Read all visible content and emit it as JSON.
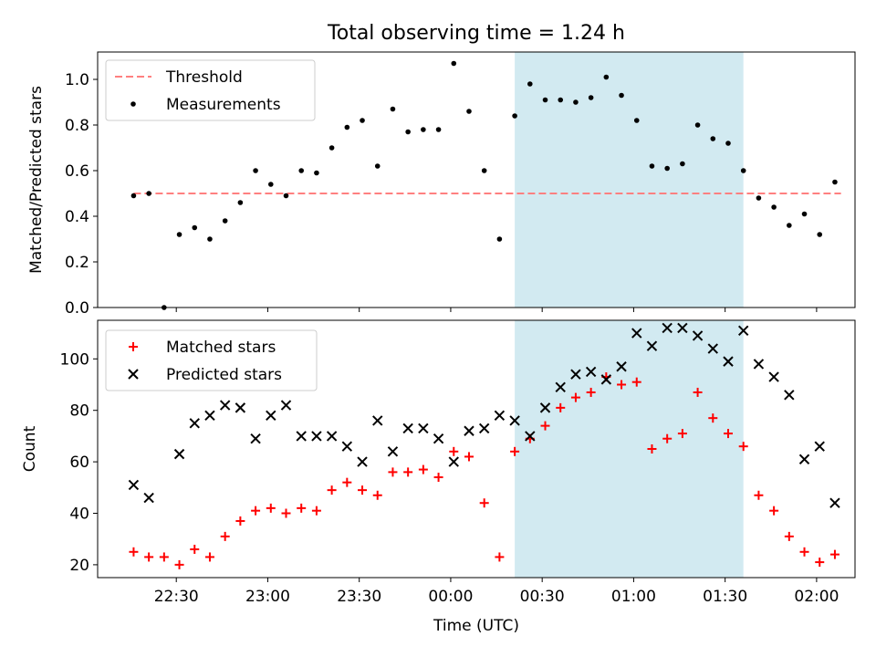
{
  "chart_data": [
    {
      "type": "scatter",
      "title": "Total observing time = 1.24 h",
      "ylabel": "Matched/Predicted stars",
      "xlabel": "",
      "ylim": [
        0,
        1.12
      ],
      "y_ticks": [
        "0.0",
        "0.2",
        "0.4",
        "0.6",
        "0.8",
        "1.0"
      ],
      "grid": false,
      "legend": "top-left",
      "highlight_band": {
        "start": "00:21",
        "end": "01:36",
        "color": "#add8e6"
      },
      "series": [
        {
          "name": "Threshold",
          "style": "dashed-line",
          "color": "#ff8080",
          "y": 0.5,
          "x_range": [
            "22:16",
            "02:08"
          ]
        },
        {
          "name": "Measurements",
          "style": "dot",
          "color": "#000000",
          "x": [
            "22:16",
            "22:21",
            "22:26",
            "22:31",
            "22:36",
            "22:41",
            "22:46",
            "22:51",
            "22:56",
            "23:01",
            "23:06",
            "23:11",
            "23:16",
            "23:21",
            "23:26",
            "23:31",
            "23:36",
            "23:41",
            "23:46",
            "23:51",
            "23:56",
            "00:01",
            "00:06",
            "00:11",
            "00:16",
            "00:21",
            "00:26",
            "00:31",
            "00:36",
            "00:41",
            "00:46",
            "00:51",
            "00:56",
            "01:01",
            "01:06",
            "01:11",
            "01:16",
            "01:21",
            "01:26",
            "01:31",
            "01:36",
            "01:41",
            "01:46",
            "01:51",
            "01:56",
            "02:01",
            "02:06"
          ],
          "y": [
            0.49,
            0.5,
            0.0,
            0.32,
            0.35,
            0.3,
            0.38,
            0.46,
            0.6,
            0.54,
            0.49,
            0.6,
            0.59,
            0.7,
            0.79,
            0.82,
            0.62,
            0.87,
            0.77,
            0.78,
            0.78,
            1.07,
            0.86,
            0.6,
            0.3,
            0.84,
            0.98,
            0.91,
            0.91,
            0.9,
            0.92,
            1.01,
            0.93,
            0.82,
            0.62,
            0.61,
            0.63,
            0.8,
            0.74,
            0.72,
            0.6,
            0.48,
            0.44,
            0.36,
            0.41,
            0.32,
            0.55
          ]
        }
      ]
    },
    {
      "type": "scatter",
      "title": "",
      "ylabel": "Count",
      "xlabel": "Time (UTC)",
      "ylim": [
        15,
        115
      ],
      "y_ticks": [
        "20",
        "40",
        "60",
        "80",
        "100"
      ],
      "x_ticks": [
        "22:30",
        "23:00",
        "23:30",
        "00:00",
        "00:30",
        "01:00",
        "01:30",
        "02:00"
      ],
      "grid": false,
      "legend": "top-left",
      "highlight_band": {
        "start": "00:21",
        "end": "01:36",
        "color": "#add8e6"
      },
      "series": [
        {
          "name": "Matched stars",
          "style": "plus",
          "color": "#ff0000",
          "x": [
            "22:16",
            "22:21",
            "22:26",
            "22:31",
            "22:36",
            "22:41",
            "22:46",
            "22:51",
            "22:56",
            "23:01",
            "23:06",
            "23:11",
            "23:16",
            "23:21",
            "23:26",
            "23:31",
            "23:36",
            "23:41",
            "23:46",
            "23:51",
            "23:56",
            "00:01",
            "00:06",
            "00:11",
            "00:16",
            "00:21",
            "00:26",
            "00:31",
            "00:36",
            "00:41",
            "00:46",
            "00:51",
            "00:56",
            "01:01",
            "01:06",
            "01:11",
            "01:16",
            "01:21",
            "01:26",
            "01:31",
            "01:36",
            "01:41",
            "01:46",
            "01:51",
            "01:56",
            "02:01",
            "02:06"
          ],
          "y": [
            25,
            23,
            23,
            20,
            26,
            23,
            31,
            37,
            41,
            42,
            40,
            42,
            41,
            49,
            52,
            49,
            47,
            56,
            56,
            57,
            54,
            64,
            62,
            44,
            23,
            64,
            69,
            74,
            81,
            85,
            87,
            93,
            90,
            91,
            65,
            69,
            71,
            87,
            77,
            71,
            66,
            47,
            41,
            31,
            25,
            21,
            24
          ]
        },
        {
          "name": "Predicted stars",
          "style": "x",
          "color": "#000000",
          "x": [
            "22:16",
            "22:21",
            "22:31",
            "22:36",
            "22:41",
            "22:46",
            "22:51",
            "22:56",
            "23:01",
            "23:06",
            "23:11",
            "23:16",
            "23:21",
            "23:26",
            "23:31",
            "23:36",
            "23:41",
            "23:46",
            "23:51",
            "23:56",
            "00:01",
            "00:06",
            "00:11",
            "00:16",
            "00:21",
            "00:26",
            "00:31",
            "00:36",
            "00:41",
            "00:46",
            "00:51",
            "00:56",
            "01:01",
            "01:06",
            "01:11",
            "01:16",
            "01:21",
            "01:26",
            "01:31",
            "01:36",
            "01:41",
            "01:46",
            "01:51",
            "01:56",
            "02:01",
            "02:06"
          ],
          "y": [
            51,
            46,
            63,
            75,
            78,
            82,
            81,
            69,
            78,
            82,
            70,
            70,
            70,
            66,
            60,
            76,
            64,
            73,
            73,
            69,
            60,
            72,
            73,
            78,
            76,
            70,
            81,
            89,
            94,
            95,
            92,
            97,
            110,
            105,
            112,
            112,
            109,
            104,
            99,
            111,
            98,
            93,
            86,
            61,
            66,
            44
          ]
        }
      ]
    }
  ]
}
